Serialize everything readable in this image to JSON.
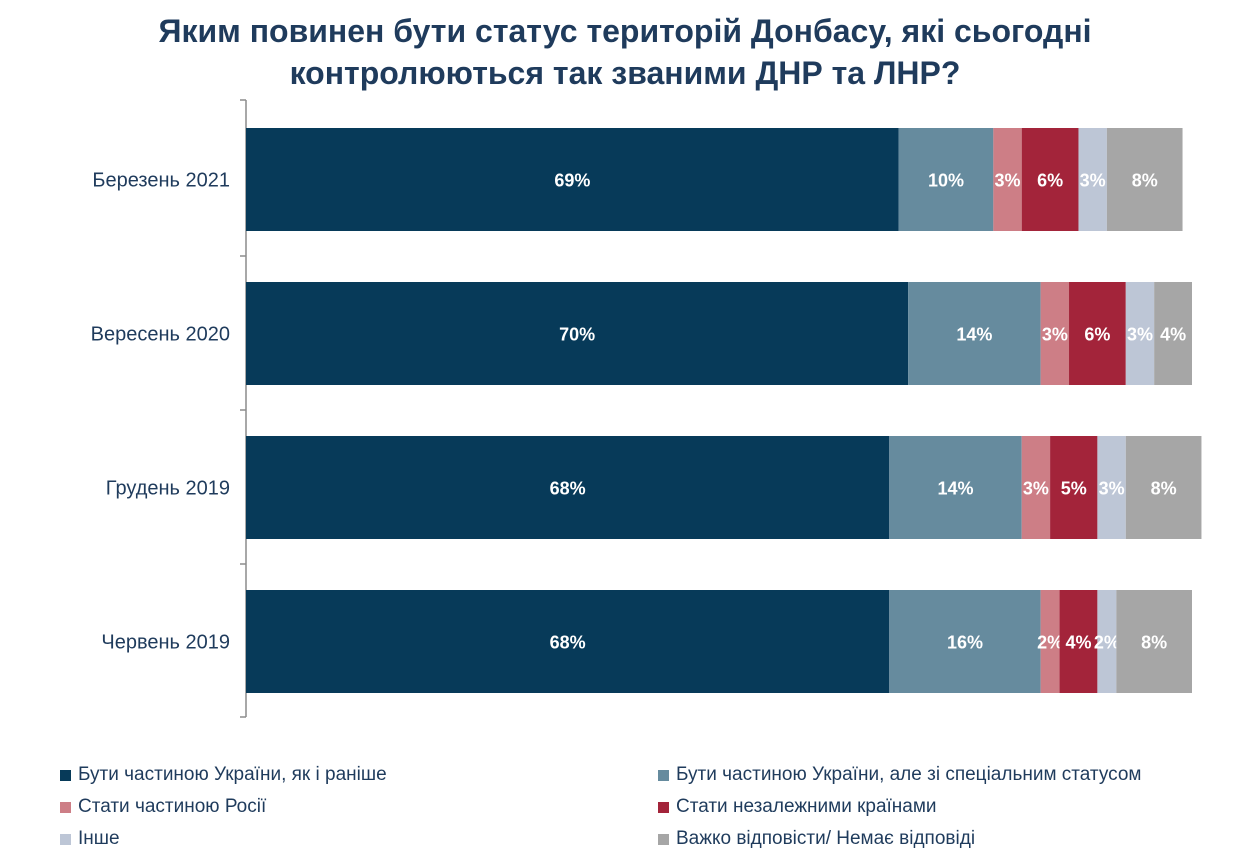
{
  "chart_data": {
    "type": "bar",
    "orientation": "horizontal",
    "stacked": true,
    "title_line1": "Яким повинен бути статус територій Донбасу, які сьогодні",
    "title_line2": "контролюються так званими ДНР та ЛНР?",
    "categories": [
      "Березень 2021",
      "Вересень 2020",
      "Грудень 2019",
      "Червень 2019"
    ],
    "series": [
      {
        "name": "Бути частиною України, як і раніше",
        "color": "#073a59",
        "values": [
          69,
          70,
          68,
          68
        ],
        "labels": [
          "69%",
          "70%",
          "68%",
          "68%"
        ]
      },
      {
        "name": "Бути частиною України, але зі спеціальним статусом",
        "color": "#668b9e",
        "values": [
          10,
          14,
          14,
          16
        ],
        "labels": [
          "10%",
          "14%",
          "14%",
          "16%"
        ]
      },
      {
        "name": "Стати частиною Росії",
        "color": "#cd7e86",
        "values": [
          3,
          3,
          3,
          2
        ],
        "labels": [
          "3%",
          "3%",
          "3%",
          "2%"
        ]
      },
      {
        "name": "Стати незалежними країнами",
        "color": "#a3243a",
        "values": [
          6,
          6,
          5,
          4
        ],
        "labels": [
          "6%",
          "6%",
          "5%",
          "4%"
        ]
      },
      {
        "name": "Інше",
        "color": "#bdc6d6",
        "values": [
          3,
          3,
          3,
          2
        ],
        "labels": [
          "3%",
          "3%",
          "3%",
          "2%"
        ]
      },
      {
        "name": "Важко відповісти/ Немає відповіді",
        "color": "#a6a6a6",
        "values": [
          8,
          4,
          8,
          8
        ],
        "labels": [
          "8%",
          "4%",
          "8%",
          "8%"
        ]
      }
    ],
    "xlim": [
      0,
      100
    ],
    "legend_position": "bottom",
    "grid": false
  }
}
